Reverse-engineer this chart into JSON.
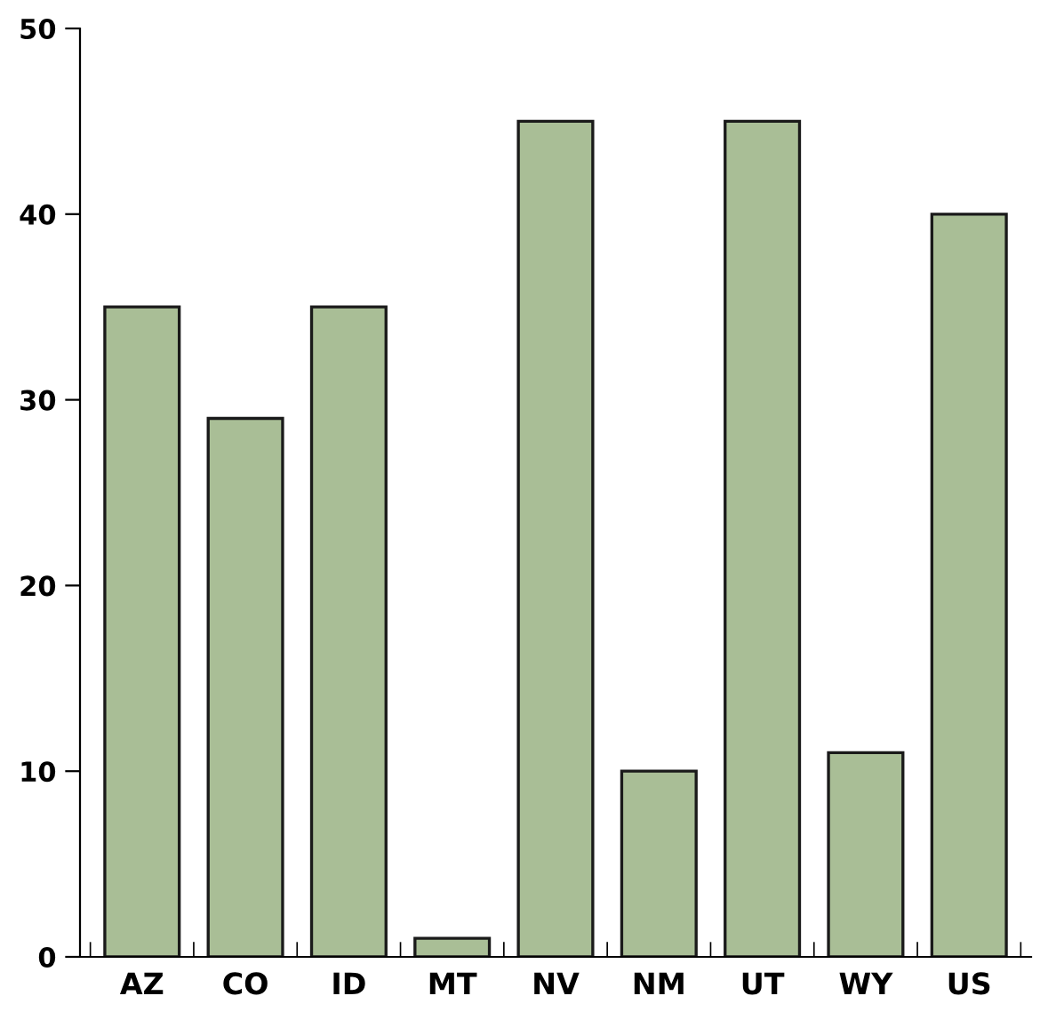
{
  "chart_data": {
    "type": "bar",
    "categories": [
      "AZ",
      "CO",
      "ID",
      "MT",
      "NV",
      "NM",
      "UT",
      "WY",
      "US"
    ],
    "values": [
      35,
      29,
      35,
      1,
      45,
      10,
      45,
      11,
      40
    ],
    "color": "#a9be96",
    "ylim": [
      0,
      50
    ],
    "yticks": [
      0,
      10,
      20,
      30,
      40,
      50
    ],
    "grid": false
  }
}
